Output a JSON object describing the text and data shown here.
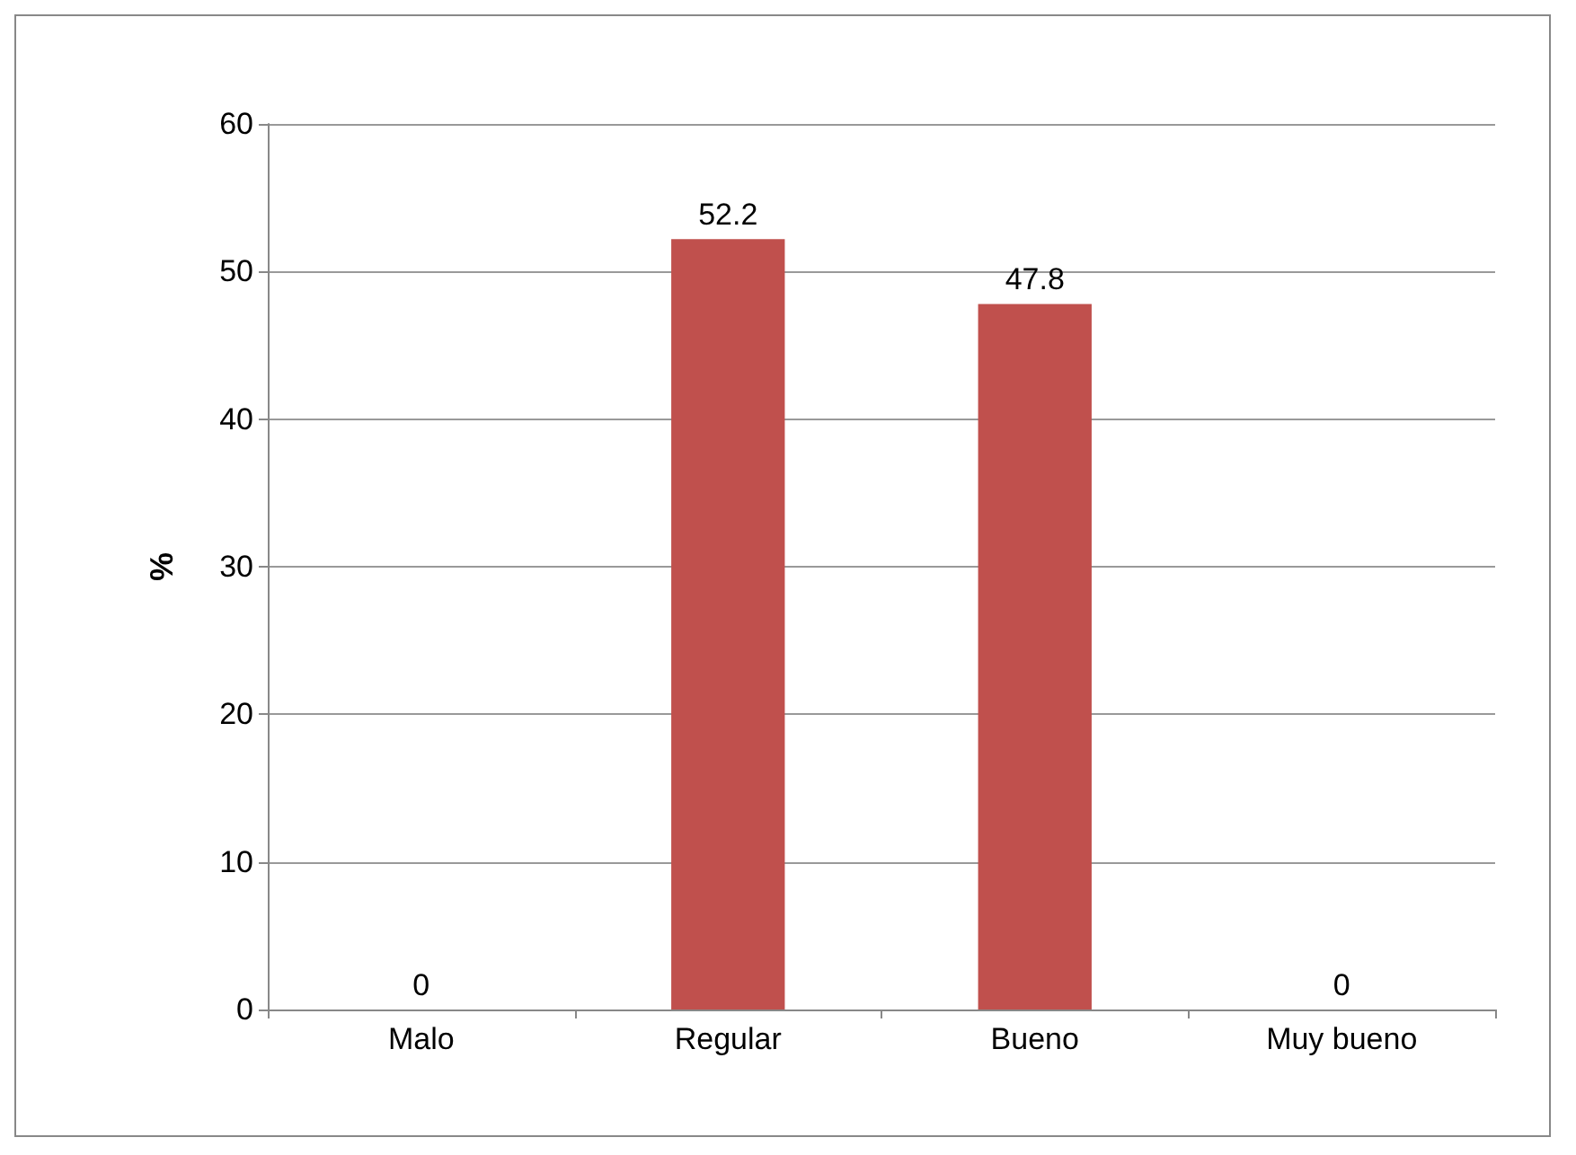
{
  "chart_data": {
    "type": "bar",
    "ylabel": "%",
    "categories": [
      "Malo",
      "Regular",
      "Bueno",
      "Muy bueno"
    ],
    "values": [
      0,
      52.2,
      47.8,
      0
    ],
    "color": "#c0504d",
    "ylim": [
      0,
      60
    ],
    "yticks": [
      0,
      10,
      20,
      30,
      40,
      50,
      60
    ],
    "grid": "y",
    "data_labels": true
  }
}
